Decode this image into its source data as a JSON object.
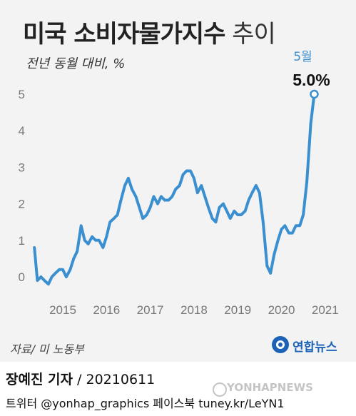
{
  "title_main": "미국 소비자물가지수",
  "title_suffix": "추이",
  "subtitle": "전년 동월 대비, %",
  "annotation": {
    "month": "5월",
    "value": "5.0%"
  },
  "source": "자료/ 미 노동부",
  "logo": {
    "text": "연합뉴스"
  },
  "footer": {
    "reporter": "장예진 기자",
    "sep": " / ",
    "date": "20210611",
    "social": "트위터 @yonhap_graphics  페이스북 tuney.kr/LeYN1"
  },
  "watermark": "YONHAPNEWS",
  "colors": {
    "line": "#3a8fd0",
    "accent": "#1c63b7",
    "background": "#f3f3f3"
  },
  "chart_data": {
    "type": "line",
    "title": "미국 소비자물가지수 추이",
    "subtitle": "전년 동월 대비, %",
    "yticks": [
      0,
      1,
      2,
      3,
      4,
      5
    ],
    "xticks": [
      "2015",
      "2016",
      "2017",
      "2018",
      "2019",
      "2020",
      "2021"
    ],
    "ylim": [
      -0.3,
      5.5
    ],
    "xlim": [
      2014.3,
      2021.55
    ],
    "grid": false,
    "series": [
      {
        "values": [
          [
            2014.35,
            0.8
          ],
          [
            2014.42,
            -0.1
          ],
          [
            2014.5,
            0.0
          ],
          [
            2014.58,
            -0.1
          ],
          [
            2014.67,
            -0.2
          ],
          [
            2014.75,
            0.0
          ],
          [
            2014.83,
            0.1
          ],
          [
            2014.92,
            0.2
          ],
          [
            2015.0,
            0.2
          ],
          [
            2015.08,
            0.0
          ],
          [
            2015.17,
            0.2
          ],
          [
            2015.25,
            0.5
          ],
          [
            2015.33,
            0.7
          ],
          [
            2015.42,
            1.4
          ],
          [
            2015.5,
            1.0
          ],
          [
            2015.58,
            0.9
          ],
          [
            2015.67,
            1.1
          ],
          [
            2015.75,
            1.0
          ],
          [
            2015.83,
            1.0
          ],
          [
            2015.92,
            0.8
          ],
          [
            2016.0,
            1.1
          ],
          [
            2016.08,
            1.5
          ],
          [
            2016.17,
            1.6
          ],
          [
            2016.25,
            1.7
          ],
          [
            2016.33,
            2.1
          ],
          [
            2016.42,
            2.5
          ],
          [
            2016.5,
            2.7
          ],
          [
            2016.58,
            2.4
          ],
          [
            2016.67,
            2.2
          ],
          [
            2016.75,
            1.9
          ],
          [
            2016.83,
            1.6
          ],
          [
            2016.92,
            1.7
          ],
          [
            2017.0,
            1.9
          ],
          [
            2017.08,
            2.2
          ],
          [
            2017.17,
            2.0
          ],
          [
            2017.25,
            2.2
          ],
          [
            2017.33,
            2.1
          ],
          [
            2017.42,
            2.1
          ],
          [
            2017.5,
            2.2
          ],
          [
            2017.58,
            2.4
          ],
          [
            2017.67,
            2.5
          ],
          [
            2017.75,
            2.8
          ],
          [
            2017.83,
            2.9
          ],
          [
            2017.92,
            2.9
          ],
          [
            2018.0,
            2.7
          ],
          [
            2018.08,
            2.3
          ],
          [
            2018.17,
            2.5
          ],
          [
            2018.25,
            2.2
          ],
          [
            2018.33,
            1.9
          ],
          [
            2018.42,
            1.6
          ],
          [
            2018.5,
            1.5
          ],
          [
            2018.58,
            1.9
          ],
          [
            2018.67,
            2.0
          ],
          [
            2018.75,
            1.8
          ],
          [
            2018.83,
            1.6
          ],
          [
            2018.92,
            1.8
          ],
          [
            2019.0,
            1.7
          ],
          [
            2019.08,
            1.7
          ],
          [
            2019.17,
            1.8
          ],
          [
            2019.25,
            2.1
          ],
          [
            2019.33,
            2.3
          ],
          [
            2019.42,
            2.5
          ],
          [
            2019.5,
            2.3
          ],
          [
            2019.58,
            1.5
          ],
          [
            2019.67,
            0.3
          ],
          [
            2019.75,
            0.1
          ],
          [
            2019.83,
            0.6
          ],
          [
            2019.92,
            1.0
          ],
          [
            2020.0,
            1.3
          ],
          [
            2020.08,
            1.4
          ],
          [
            2020.17,
            1.2
          ],
          [
            2020.25,
            1.2
          ],
          [
            2020.33,
            1.4
          ],
          [
            2020.42,
            1.4
          ],
          [
            2020.5,
            1.7
          ],
          [
            2020.58,
            2.6
          ],
          [
            2020.67,
            4.2
          ],
          [
            2020.75,
            5.0
          ]
        ]
      }
    ]
  }
}
